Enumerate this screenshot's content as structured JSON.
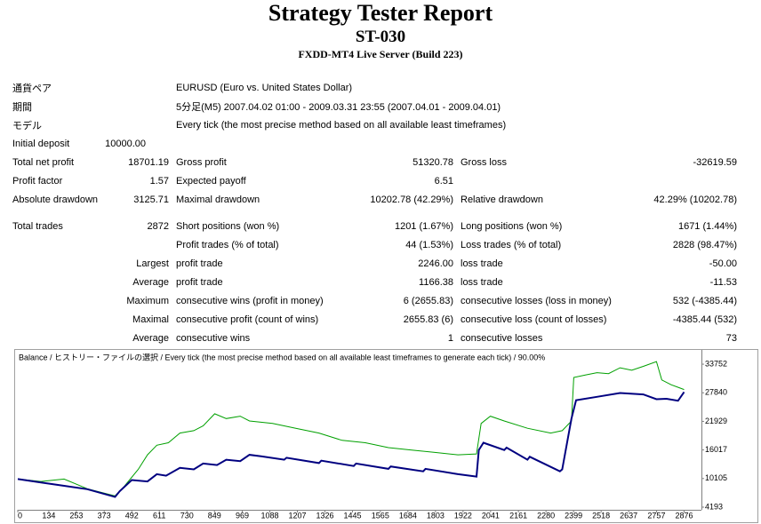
{
  "header": {
    "title": "Strategy Tester Report",
    "name": "ST-030",
    "server": "FXDD-MT4 Live Server (Build 223)"
  },
  "table": {
    "rows": [
      [
        "通貨ペア",
        "EURUSD (Euro vs. United States Dollar)"
      ],
      [
        "期間",
        "5分足(M5) 2007.04.02 01:00 - 2009.03.31 23:55 (2007.04.01 - 2009.04.01)"
      ],
      [
        "モデル",
        "Every tick (the most precise method based on all available least timeframes)"
      ],
      [
        "Initial deposit",
        "10000.00"
      ],
      [
        "Total net profit",
        "18701.19",
        "Gross profit",
        "51320.78",
        "Gross loss",
        "-32619.59"
      ],
      [
        "Profit factor",
        "1.57",
        "Expected payoff",
        "6.51"
      ],
      [
        "Absolute drawdown",
        "3125.71",
        "Maximal drawdown",
        "10202.78 (42.29%)",
        "Relative drawdown",
        "42.29% (10202.78)"
      ],
      [
        "Total trades",
        "2872",
        "Short positions (won %)",
        "1201 (1.67%)",
        "Long positions (won %)",
        "1671 (1.44%)"
      ],
      [
        "Profit trades (% of total)",
        "44 (1.53%)",
        "Loss trades (% of total)",
        "2828 (98.47%)"
      ],
      [
        "Largest",
        "profit trade",
        "2246.00",
        "loss trade",
        "-50.00"
      ],
      [
        "Average",
        "profit trade",
        "1166.38",
        "loss trade",
        "-11.53"
      ],
      [
        "Maximum",
        "consecutive wins (profit in money)",
        "6 (2655.83)",
        "consecutive losses (loss in money)",
        "532 (-4385.44)"
      ],
      [
        "Maximal",
        "consecutive profit (count of wins)",
        "2655.83 (6)",
        "consecutive loss (count of losses)",
        "-4385.44 (532)"
      ],
      [
        "Average",
        "consecutive wins",
        "1",
        "consecutive losses",
        "73"
      ]
    ]
  },
  "chart_data": {
    "type": "line",
    "title": "Balance / ヒストリー・ファイルの選択 / Every tick (the most precise method based on all available least timeframes to generate each tick) / 90.00%",
    "xlim": [
      0,
      2951
    ],
    "ylim": [
      3640,
      36700
    ],
    "xticks": [
      0,
      134,
      253,
      373,
      492,
      611,
      730,
      849,
      969,
      1088,
      1207,
      1326,
      1445,
      1565,
      1684,
      1803,
      1922,
      2041,
      2161,
      2280,
      2399,
      2518,
      2637,
      2757,
      2876
    ],
    "yticks": [
      4193,
      10105,
      16017,
      21929,
      27840,
      33752
    ],
    "grid": false,
    "series": [
      {
        "color": "#00a000",
        "x": [
          0,
          100,
          200,
          300,
          420,
          460,
          520,
          560,
          600,
          650,
          700,
          760,
          800,
          850,
          900,
          960,
          1000,
          1100,
          1200,
          1300,
          1400,
          1500,
          1600,
          1700,
          1800,
          1900,
          1980,
          2000,
          2040,
          2100,
          2200,
          2300,
          2350,
          2390,
          2400,
          2450,
          2500,
          2550,
          2600,
          2650,
          2700,
          2757,
          2780,
          2820,
          2876
        ],
        "values": [
          10000,
          9500,
          10000,
          8000,
          6500,
          8500,
          12000,
          15000,
          17000,
          17500,
          19500,
          20000,
          21000,
          23500,
          22500,
          23000,
          22000,
          21500,
          20500,
          19500,
          18000,
          17500,
          16500,
          16000,
          15500,
          15000,
          15200,
          21500,
          23000,
          22000,
          20500,
          19500,
          20000,
          22000,
          31000,
          31500,
          32000,
          31800,
          33000,
          32500,
          33300,
          34300,
          30500,
          29500,
          28500
        ]
      },
      {
        "color": "#000080",
        "x": [
          0,
          100,
          200,
          300,
          420,
          440,
          492,
          560,
          600,
          640,
          700,
          760,
          800,
          860,
          900,
          960,
          1000,
          1050,
          1150,
          1160,
          1300,
          1310,
          1450,
          1460,
          1600,
          1610,
          1750,
          1760,
          1900,
          1980,
          1990,
          2010,
          2100,
          2110,
          2200,
          2210,
          2340,
          2350,
          2390,
          2410,
          2500,
          2600,
          2700,
          2757,
          2800,
          2850,
          2876
        ],
        "values": [
          10000,
          9300,
          8600,
          7900,
          6300,
          7500,
          9800,
          9500,
          11000,
          10700,
          12300,
          12000,
          13200,
          12900,
          14000,
          13700,
          15000,
          14700,
          14000,
          14400,
          13300,
          13800,
          12700,
          13200,
          12100,
          12600,
          11600,
          12100,
          11000,
          10500,
          16000,
          17500,
          16000,
          16500,
          14000,
          14600,
          11600,
          12000,
          22500,
          26300,
          27000,
          27800,
          27500,
          26500,
          26600,
          26200,
          28000
        ]
      }
    ]
  }
}
